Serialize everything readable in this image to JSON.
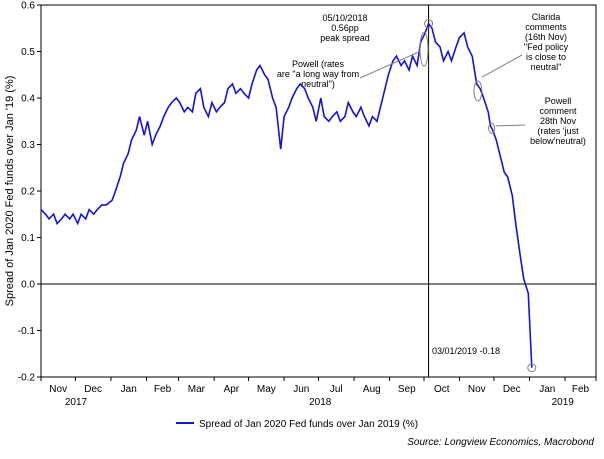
{
  "chart_data": {
    "type": "line",
    "ylabel": "Spread of Jan 2020 Fed funds over Jan '19 (%)",
    "ylim": [
      -0.2,
      0.6
    ],
    "yticks": [
      "0.6",
      "0.5",
      "0.4",
      "0.3",
      "0.2",
      "0.1",
      "0.0",
      "-0.1",
      "-0.2"
    ],
    "xlim": [
      "2017-11-01",
      "2019-02-28"
    ],
    "xticks": [
      "Nov",
      "Dec",
      "Jan",
      "Feb",
      "Mar",
      "Apr",
      "May",
      "Jun",
      "Jul",
      "Aug",
      "Sep",
      "Oct",
      "Nov",
      "Dec",
      "Jan",
      "Feb"
    ],
    "year_labels": [
      "2017",
      "2018",
      "2019"
    ],
    "legend": {
      "position": "bottom-center",
      "entries": [
        "Spread of Jan 2020 Fed funds over Jan 2019 (%)"
      ]
    },
    "source": "Source: Longview Economics, Macrobond",
    "colors": {
      "series": "#1414d6",
      "axis": "#000000",
      "marker": "#808080"
    },
    "vertical_line_date": "2018-10-05",
    "series": [
      {
        "name": "Spread of Jan 2020 Fed funds over Jan 2019 (%)",
        "points": [
          [
            "2017-11-01",
            0.16
          ],
          [
            "2017-11-05",
            0.15
          ],
          [
            "2017-11-08",
            0.14
          ],
          [
            "2017-11-12",
            0.15
          ],
          [
            "2017-11-15",
            0.13
          ],
          [
            "2017-11-19",
            0.14
          ],
          [
            "2017-11-22",
            0.15
          ],
          [
            "2017-11-26",
            0.14
          ],
          [
            "2017-11-29",
            0.15
          ],
          [
            "2017-12-03",
            0.13
          ],
          [
            "2017-12-06",
            0.15
          ],
          [
            "2017-12-10",
            0.14
          ],
          [
            "2017-12-13",
            0.16
          ],
          [
            "2017-12-17",
            0.15
          ],
          [
            "2017-12-20",
            0.16
          ],
          [
            "2017-12-24",
            0.17
          ],
          [
            "2017-12-28",
            0.17
          ],
          [
            "2018-01-02",
            0.18
          ],
          [
            "2018-01-05",
            0.2
          ],
          [
            "2018-01-09",
            0.23
          ],
          [
            "2018-01-12",
            0.26
          ],
          [
            "2018-01-16",
            0.28
          ],
          [
            "2018-01-19",
            0.31
          ],
          [
            "2018-01-23",
            0.33
          ],
          [
            "2018-01-26",
            0.36
          ],
          [
            "2018-01-30",
            0.32
          ],
          [
            "2018-02-02",
            0.35
          ],
          [
            "2018-02-06",
            0.3
          ],
          [
            "2018-02-09",
            0.32
          ],
          [
            "2018-02-13",
            0.34
          ],
          [
            "2018-02-16",
            0.36
          ],
          [
            "2018-02-20",
            0.38
          ],
          [
            "2018-02-23",
            0.39
          ],
          [
            "2018-02-27",
            0.4
          ],
          [
            "2018-03-02",
            0.39
          ],
          [
            "2018-03-06",
            0.37
          ],
          [
            "2018-03-09",
            0.38
          ],
          [
            "2018-03-13",
            0.37
          ],
          [
            "2018-03-16",
            0.41
          ],
          [
            "2018-03-20",
            0.42
          ],
          [
            "2018-03-23",
            0.38
          ],
          [
            "2018-03-27",
            0.36
          ],
          [
            "2018-03-30",
            0.39
          ],
          [
            "2018-04-03",
            0.37
          ],
          [
            "2018-04-06",
            0.38
          ],
          [
            "2018-04-10",
            0.39
          ],
          [
            "2018-04-13",
            0.42
          ],
          [
            "2018-04-17",
            0.43
          ],
          [
            "2018-04-20",
            0.41
          ],
          [
            "2018-04-24",
            0.42
          ],
          [
            "2018-04-27",
            0.41
          ],
          [
            "2018-05-01",
            0.4
          ],
          [
            "2018-05-04",
            0.43
          ],
          [
            "2018-05-08",
            0.46
          ],
          [
            "2018-05-11",
            0.47
          ],
          [
            "2018-05-15",
            0.45
          ],
          [
            "2018-05-18",
            0.44
          ],
          [
            "2018-05-22",
            0.4
          ],
          [
            "2018-05-25",
            0.38
          ],
          [
            "2018-05-29",
            0.29
          ],
          [
            "2018-06-01",
            0.36
          ],
          [
            "2018-06-05",
            0.38
          ],
          [
            "2018-06-08",
            0.4
          ],
          [
            "2018-06-12",
            0.42
          ],
          [
            "2018-06-15",
            0.43
          ],
          [
            "2018-06-19",
            0.42
          ],
          [
            "2018-06-22",
            0.4
          ],
          [
            "2018-06-26",
            0.38
          ],
          [
            "2018-06-29",
            0.35
          ],
          [
            "2018-07-03",
            0.4
          ],
          [
            "2018-07-06",
            0.36
          ],
          [
            "2018-07-10",
            0.35
          ],
          [
            "2018-07-13",
            0.36
          ],
          [
            "2018-07-17",
            0.37
          ],
          [
            "2018-07-20",
            0.35
          ],
          [
            "2018-07-24",
            0.36
          ],
          [
            "2018-07-27",
            0.39
          ],
          [
            "2018-07-31",
            0.37
          ],
          [
            "2018-08-03",
            0.36
          ],
          [
            "2018-08-07",
            0.38
          ],
          [
            "2018-08-10",
            0.36
          ],
          [
            "2018-08-14",
            0.34
          ],
          [
            "2018-08-17",
            0.36
          ],
          [
            "2018-08-21",
            0.35
          ],
          [
            "2018-08-24",
            0.38
          ],
          [
            "2018-08-28",
            0.42
          ],
          [
            "2018-08-31",
            0.45
          ],
          [
            "2018-09-04",
            0.48
          ],
          [
            "2018-09-07",
            0.49
          ],
          [
            "2018-09-11",
            0.47
          ],
          [
            "2018-09-14",
            0.48
          ],
          [
            "2018-09-18",
            0.46
          ],
          [
            "2018-09-21",
            0.49
          ],
          [
            "2018-09-25",
            0.47
          ],
          [
            "2018-09-28",
            0.52
          ],
          [
            "2018-10-02",
            0.54
          ],
          [
            "2018-10-05",
            0.56
          ],
          [
            "2018-10-08",
            0.55
          ],
          [
            "2018-10-11",
            0.52
          ],
          [
            "2018-10-15",
            0.51
          ],
          [
            "2018-10-18",
            0.48
          ],
          [
            "2018-10-22",
            0.5
          ],
          [
            "2018-10-25",
            0.48
          ],
          [
            "2018-10-29",
            0.51
          ],
          [
            "2018-11-01",
            0.53
          ],
          [
            "2018-11-05",
            0.54
          ],
          [
            "2018-11-08",
            0.51
          ],
          [
            "2018-11-12",
            0.49
          ],
          [
            "2018-11-16",
            0.43
          ],
          [
            "2018-11-19",
            0.42
          ],
          [
            "2018-11-22",
            0.4
          ],
          [
            "2018-11-26",
            0.37
          ],
          [
            "2018-11-28",
            0.34
          ],
          [
            "2018-11-30",
            0.33
          ],
          [
            "2018-12-03",
            0.31
          ],
          [
            "2018-12-06",
            0.28
          ],
          [
            "2018-12-10",
            0.24
          ],
          [
            "2018-12-13",
            0.23
          ],
          [
            "2018-12-17",
            0.19
          ],
          [
            "2018-12-20",
            0.13
          ],
          [
            "2018-12-24",
            0.06
          ],
          [
            "2018-12-27",
            0.01
          ],
          [
            "2018-12-31",
            -0.02
          ],
          [
            "2019-01-03",
            -0.18
          ]
        ]
      }
    ],
    "annotations": [
      {
        "lines": [
          "05/10/2018",
          "0.56pp",
          "peak spread"
        ],
        "x": "2018-10-05",
        "y": 0.56
      },
      {
        "lines": [
          "Powell (rates",
          "are \"a long way from",
          "neutral\")"
        ],
        "x": "2018-10-03",
        "y": 0.47
      },
      {
        "lines": [
          "Clarida",
          "comments",
          "(16th Nov)",
          "\"Fed policy",
          "is close to",
          "neutral\""
        ],
        "x": "2018-11-16",
        "y": 0.41
      },
      {
        "lines": [
          "Powell",
          "comment",
          "28th Nov",
          "(rates 'just",
          "below'neutral)"
        ],
        "x": "2018-11-28",
        "y": 0.33
      },
      {
        "lines": [
          "03/01/2019 -0.18"
        ],
        "x": "2019-01-03",
        "y": -0.18
      }
    ]
  }
}
